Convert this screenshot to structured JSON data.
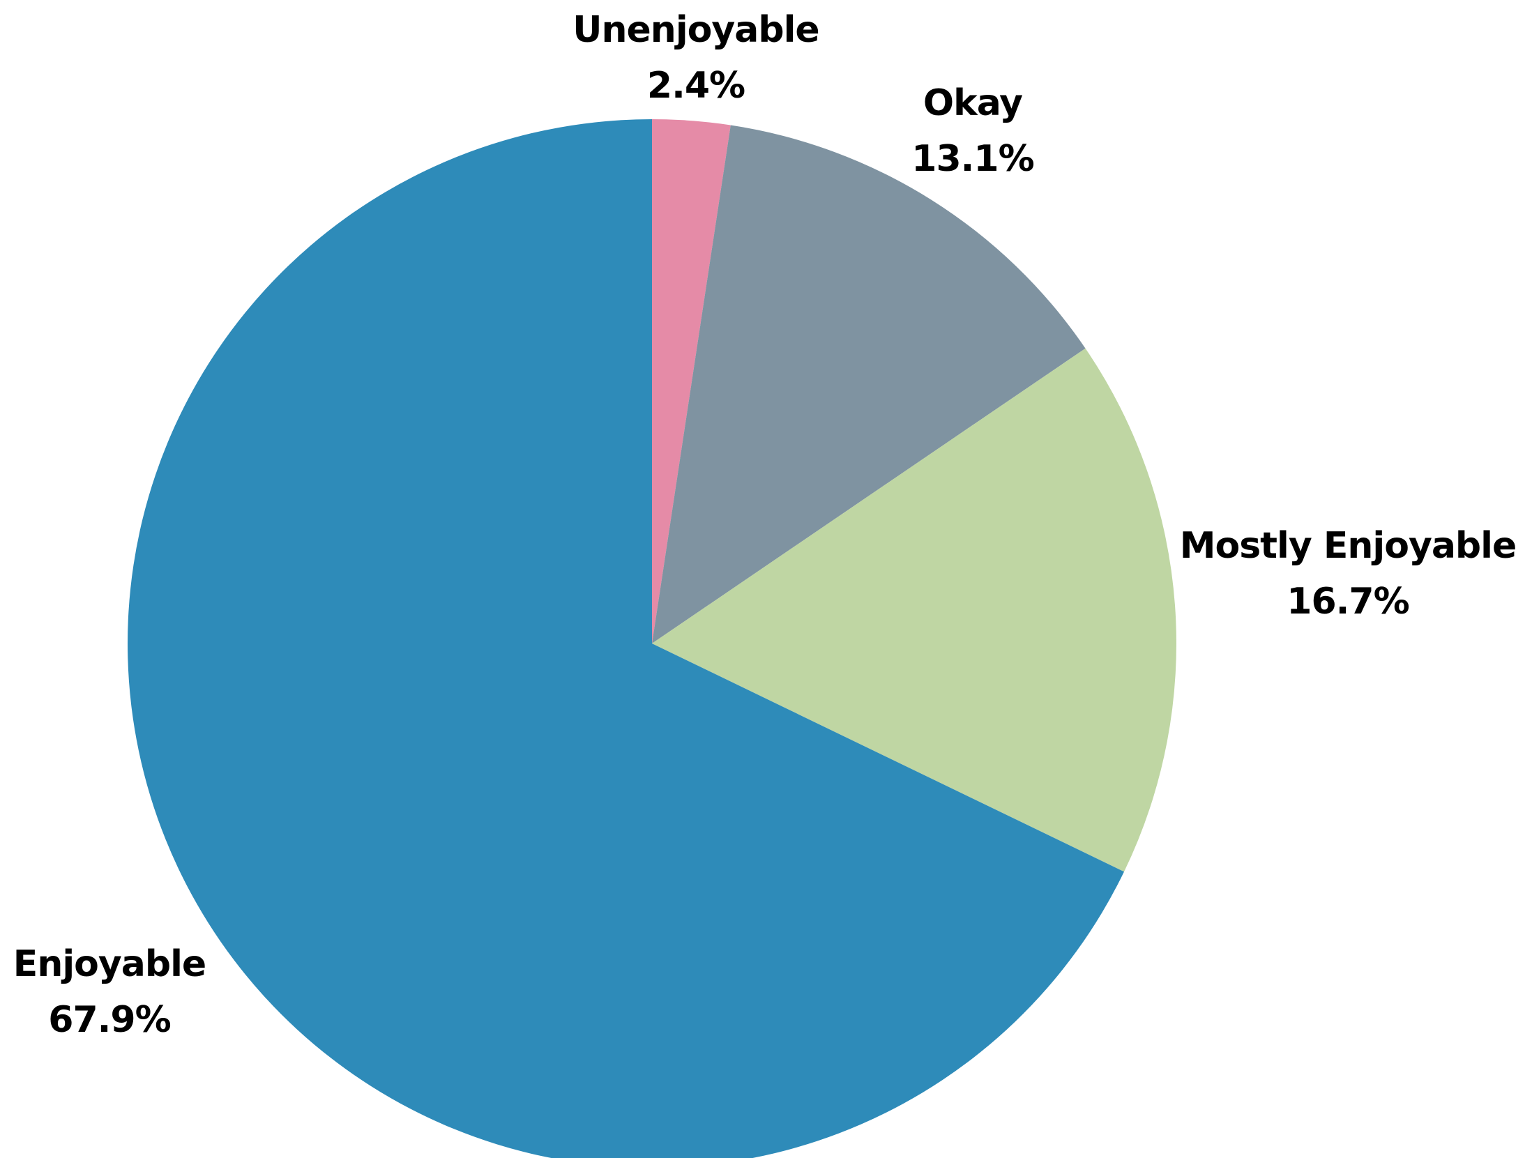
{
  "chart_data": {
    "type": "pie",
    "categories": [
      "Unenjoyable",
      "Okay",
      "Mostly Enjoyable",
      "Enjoyable"
    ],
    "values": [
      2.4,
      13.1,
      16.7,
      67.9
    ],
    "value_labels": [
      "2.4%",
      "13.1%",
      "16.7%",
      "67.9%"
    ],
    "colors": [
      "#e58ba7",
      "#7f93a1",
      "#bfd6a3",
      "#2e8bb9"
    ],
    "start_angle": "12 o'clock",
    "direction": "clockwise",
    "legend": "none",
    "title": ""
  }
}
